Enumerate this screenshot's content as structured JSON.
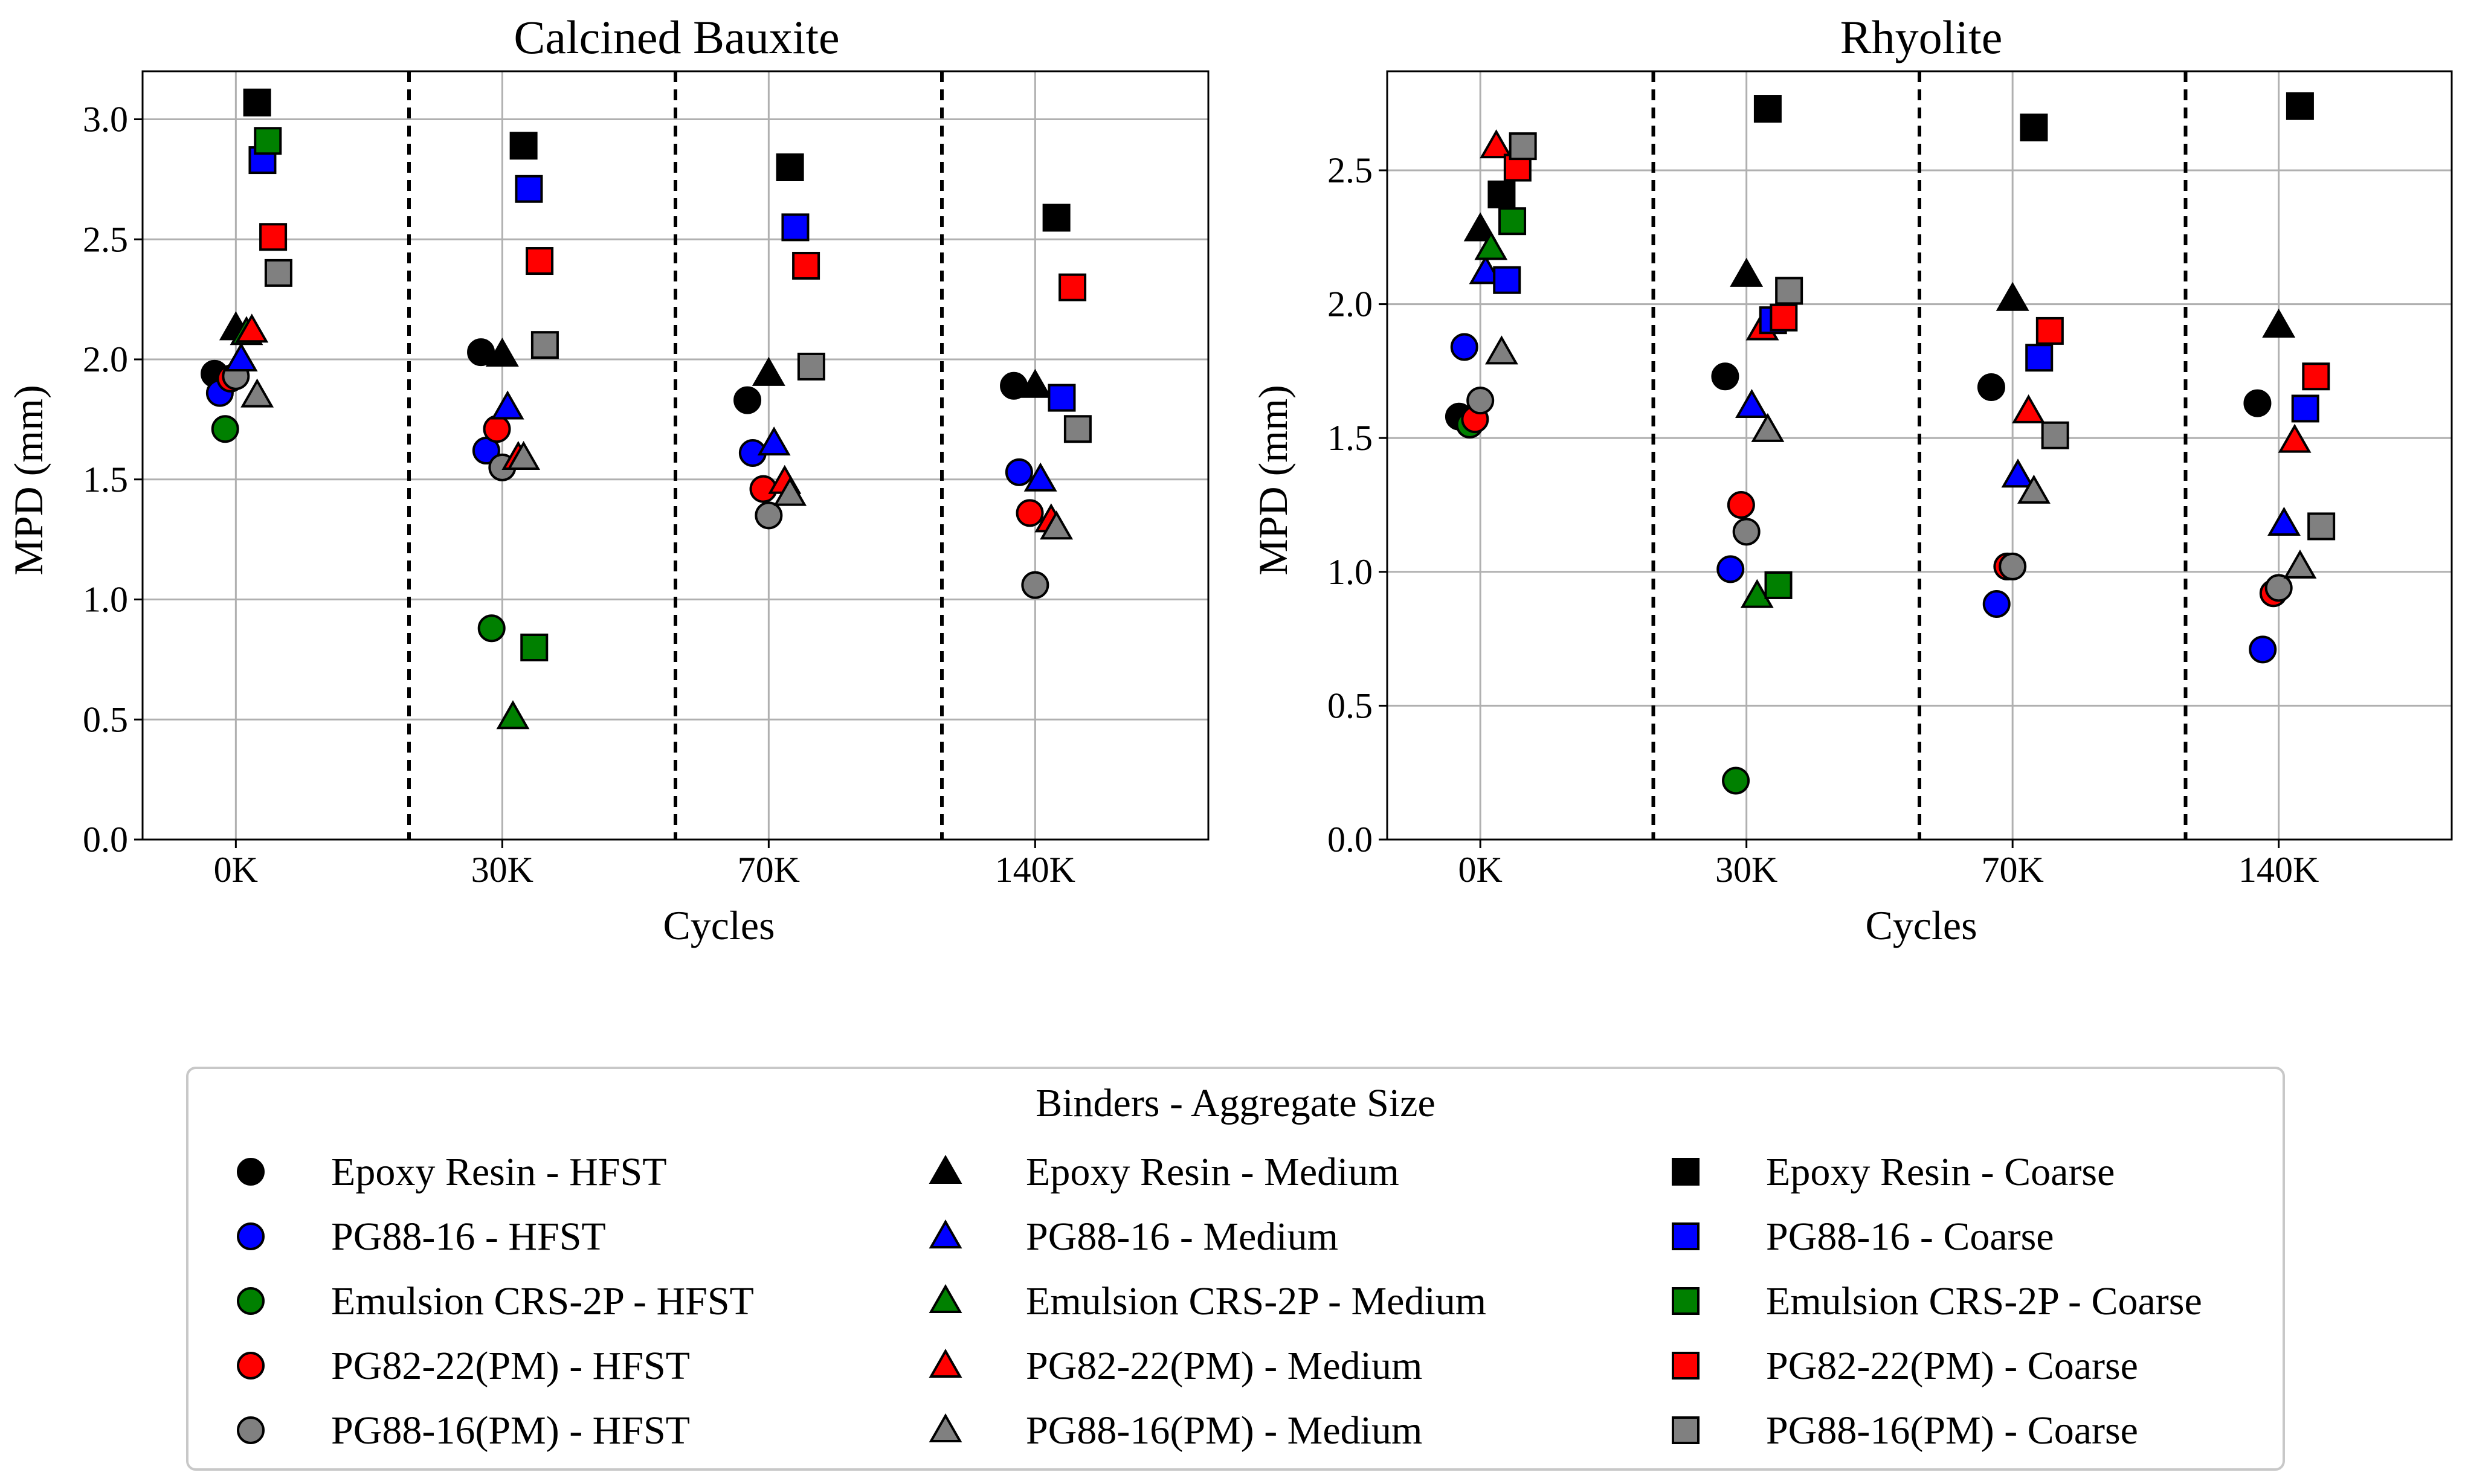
{
  "legend": {
    "title": "Binders - Aggregate Size",
    "columns": [
      {
        "marker": "circle",
        "items": [
          {
            "label": "Epoxy Resin - HFST",
            "color": "#000000"
          },
          {
            "label": "PG88-16 - HFST",
            "color": "#0000ff"
          },
          {
            "label": "Emulsion CRS-2P - HFST",
            "color": "#008000"
          },
          {
            "label": "PG82-22(PM) - HFST",
            "color": "#ff0000"
          },
          {
            "label": "PG88-16(PM) - HFST",
            "color": "#808080"
          }
        ]
      },
      {
        "marker": "triangle",
        "items": [
          {
            "label": "Epoxy Resin - Medium",
            "color": "#000000"
          },
          {
            "label": "PG88-16 - Medium",
            "color": "#0000ff"
          },
          {
            "label": "Emulsion CRS-2P - Medium",
            "color": "#008000"
          },
          {
            "label": "PG82-22(PM) - Medium",
            "color": "#ff0000"
          },
          {
            "label": "PG88-16(PM) - Medium",
            "color": "#808080"
          }
        ]
      },
      {
        "marker": "square",
        "items": [
          {
            "label": "Epoxy Resin - Coarse",
            "color": "#000000"
          },
          {
            "label": "PG88-16 - Coarse",
            "color": "#0000ff"
          },
          {
            "label": "Emulsion CRS-2P - Coarse",
            "color": "#008000"
          },
          {
            "label": "PG82-22(PM) - Coarse",
            "color": "#ff0000"
          },
          {
            "label": "PG88-16(PM) - Coarse",
            "color": "#808080"
          }
        ]
      }
    ]
  },
  "chart_data": [
    {
      "type": "scatter",
      "title": "Calcined Bauxite",
      "xlabel": "Cycles",
      "ylabel": "MPD (mm)",
      "categories": [
        "0K",
        "30K",
        "70K",
        "140K"
      ],
      "ylim": [
        0,
        3.2
      ],
      "yticks": [
        0.0,
        0.5,
        1.0,
        1.5,
        2.0,
        2.5,
        3.0
      ],
      "ytick_labels": [
        "0.0",
        "0.5",
        "1.0",
        "1.5",
        "2.0",
        "2.5",
        "3.0"
      ],
      "grid": true,
      "series": [
        {
          "binder": "Epoxy Resin",
          "size": "HFST",
          "marker": "circle",
          "color": "#000000",
          "values": [
            1.94,
            2.03,
            1.83,
            1.89
          ]
        },
        {
          "binder": "PG88-16",
          "size": "HFST",
          "marker": "circle",
          "color": "#0000ff",
          "values": [
            1.86,
            1.62,
            1.61,
            1.53
          ]
        },
        {
          "binder": "Emulsion CRS-2P",
          "size": "HFST",
          "marker": "circle",
          "color": "#008000",
          "values": [
            1.71,
            0.88,
            null,
            null
          ]
        },
        {
          "binder": "PG82-22(PM)",
          "size": "HFST",
          "marker": "circle",
          "color": "#ff0000",
          "values": [
            1.92,
            1.71,
            1.46,
            1.36
          ]
        },
        {
          "binder": "PG88-16(PM)",
          "size": "HFST",
          "marker": "circle",
          "color": "#808080",
          "values": [
            1.93,
            1.55,
            1.35,
            1.06
          ]
        },
        {
          "binder": "Epoxy Resin",
          "size": "Medium",
          "marker": "triangle",
          "color": "#000000",
          "values": [
            2.13,
            2.02,
            1.94,
            1.89
          ]
        },
        {
          "binder": "PG88-16",
          "size": "Medium",
          "marker": "triangle",
          "color": "#0000ff",
          "values": [
            2.0,
            1.8,
            1.65,
            1.5
          ]
        },
        {
          "binder": "Emulsion CRS-2P",
          "size": "Medium",
          "marker": "triangle",
          "color": "#008000",
          "values": [
            2.11,
            0.51,
            null,
            null
          ]
        },
        {
          "binder": "PG82-22(PM)",
          "size": "Medium",
          "marker": "triangle",
          "color": "#ff0000",
          "values": [
            2.12,
            1.59,
            1.49,
            1.33
          ]
        },
        {
          "binder": "PG88-16(PM)",
          "size": "Medium",
          "marker": "triangle",
          "color": "#808080",
          "values": [
            1.85,
            1.59,
            1.44,
            1.3
          ]
        },
        {
          "binder": "Epoxy Resin",
          "size": "Coarse",
          "marker": "square",
          "color": "#000000",
          "values": [
            3.07,
            2.89,
            2.8,
            2.59
          ]
        },
        {
          "binder": "PG88-16",
          "size": "Coarse",
          "marker": "square",
          "color": "#0000ff",
          "values": [
            2.83,
            2.71,
            2.55,
            1.84
          ]
        },
        {
          "binder": "Emulsion CRS-2P",
          "size": "Coarse",
          "marker": "square",
          "color": "#008000",
          "values": [
            2.91,
            0.8,
            null,
            null
          ]
        },
        {
          "binder": "PG82-22(PM)",
          "size": "Coarse",
          "marker": "square",
          "color": "#ff0000",
          "values": [
            2.51,
            2.41,
            2.39,
            2.3
          ]
        },
        {
          "binder": "PG88-16(PM)",
          "size": "Coarse",
          "marker": "square",
          "color": "#808080",
          "values": [
            2.36,
            2.06,
            1.97,
            1.71
          ]
        }
      ]
    },
    {
      "type": "scatter",
      "title": "Rhyolite",
      "xlabel": "Cycles",
      "ylabel": "MPD (mm)",
      "categories": [
        "0K",
        "30K",
        "70K",
        "140K"
      ],
      "ylim": [
        0,
        2.87
      ],
      "yticks": [
        0.0,
        0.5,
        1.0,
        1.5,
        2.0,
        2.5
      ],
      "ytick_labels": [
        "0.0",
        "0.5",
        "1.0",
        "1.5",
        "2.0",
        "2.5"
      ],
      "grid": true,
      "series": [
        {
          "binder": "Epoxy Resin",
          "size": "HFST",
          "marker": "circle",
          "color": "#000000",
          "values": [
            1.58,
            1.73,
            1.69,
            1.63
          ]
        },
        {
          "binder": "PG88-16",
          "size": "HFST",
          "marker": "circle",
          "color": "#0000ff",
          "values": [
            1.84,
            1.01,
            0.88,
            0.71
          ]
        },
        {
          "binder": "Emulsion CRS-2P",
          "size": "HFST",
          "marker": "circle",
          "color": "#008000",
          "values": [
            1.55,
            0.22,
            null,
            null
          ]
        },
        {
          "binder": "PG82-22(PM)",
          "size": "HFST",
          "marker": "circle",
          "color": "#ff0000",
          "values": [
            1.57,
            1.25,
            1.02,
            0.92
          ]
        },
        {
          "binder": "PG88-16(PM)",
          "size": "HFST",
          "marker": "circle",
          "color": "#808080",
          "values": [
            1.64,
            1.15,
            1.02,
            0.94
          ]
        },
        {
          "binder": "Epoxy Resin",
          "size": "Medium",
          "marker": "triangle",
          "color": "#000000",
          "values": [
            2.28,
            2.11,
            2.02,
            1.92
          ]
        },
        {
          "binder": "PG88-16",
          "size": "Medium",
          "marker": "triangle",
          "color": "#0000ff",
          "values": [
            2.12,
            1.62,
            1.36,
            1.18
          ]
        },
        {
          "binder": "Emulsion CRS-2P",
          "size": "Medium",
          "marker": "triangle",
          "color": "#008000",
          "values": [
            2.21,
            0.91,
            null,
            null
          ]
        },
        {
          "binder": "PG82-22(PM)",
          "size": "Medium",
          "marker": "triangle",
          "color": "#ff0000",
          "values": [
            2.59,
            1.91,
            1.6,
            1.49
          ]
        },
        {
          "binder": "PG88-16(PM)",
          "size": "Medium",
          "marker": "triangle",
          "color": "#808080",
          "values": [
            1.82,
            1.53,
            1.3,
            1.02
          ]
        },
        {
          "binder": "Epoxy Resin",
          "size": "Coarse",
          "marker": "square",
          "color": "#000000",
          "values": [
            2.41,
            2.73,
            2.66,
            2.74
          ]
        },
        {
          "binder": "PG88-16",
          "size": "Coarse",
          "marker": "square",
          "color": "#0000ff",
          "values": [
            2.09,
            1.94,
            1.8,
            1.61
          ]
        },
        {
          "binder": "Emulsion CRS-2P",
          "size": "Coarse",
          "marker": "square",
          "color": "#008000",
          "values": [
            2.31,
            0.95,
            null,
            null
          ]
        },
        {
          "binder": "PG82-22(PM)",
          "size": "Coarse",
          "marker": "square",
          "color": "#ff0000",
          "values": [
            2.51,
            1.95,
            1.9,
            1.73
          ]
        },
        {
          "binder": "PG88-16(PM)",
          "size": "Coarse",
          "marker": "square",
          "color": "#808080",
          "values": [
            2.59,
            2.05,
            1.51,
            1.17
          ]
        }
      ]
    }
  ]
}
